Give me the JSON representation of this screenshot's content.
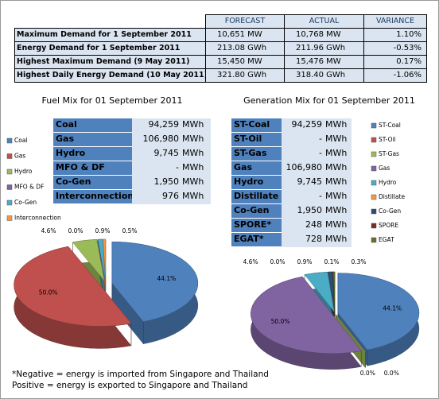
{
  "summary_table": {
    "headers": [
      "FORECAST",
      "ACTUAL",
      "VARIANCE"
    ],
    "rows": [
      [
        "Maximum Demand for 1 September 2011",
        "10,651 MW",
        "10,768 MW",
        "1.10%"
      ],
      [
        "Energy Demand for 1 September 2011",
        "213.08 GWh",
        "211.96 GWh",
        "-0.53%"
      ],
      [
        "Highest Maximum Demand (9 May 2011)",
        "15,450 MW",
        "15,476 MW",
        "0.17%"
      ],
      [
        "Highest Daily Energy Demand (10 May 2011)",
        "321.80 GWh",
        "318.40 GWh",
        "-1.06%"
      ]
    ]
  },
  "fuel_table": {
    "rows": [
      [
        "Coal",
        "94,259",
        "MWh"
      ],
      [
        "Gas",
        "106,980",
        "MWh"
      ],
      [
        "Hydro",
        "9,745",
        "MWh"
      ],
      [
        "MFO & DF",
        "-",
        "MWh"
      ],
      [
        "Co-Gen",
        "1,950",
        "MWh"
      ],
      [
        "Interconnection*",
        "976",
        "MWh"
      ]
    ]
  },
  "generation_table": {
    "rows": [
      [
        "ST-Coal",
        "94,259",
        "MWh"
      ],
      [
        "ST-Oil",
        "-",
        "MWh"
      ],
      [
        "ST-Gas",
        "-",
        "MWh"
      ],
      [
        "Gas",
        "106,980",
        "MWh"
      ],
      [
        "Hydro",
        "9,745",
        "MWh"
      ],
      [
        "Distillate",
        "-",
        "MWh"
      ],
      [
        "Co-Gen",
        "1,950",
        "MWh"
      ],
      [
        "SPORE*",
        "248",
        "MWh"
      ],
      [
        "EGAT*",
        "728",
        "MWh"
      ]
    ]
  },
  "notes": [
    "*Negative = energy is imported from Singapore and Thailand",
    "Positive = energy is exported to Singapore and Thailand"
  ],
  "chart_data": [
    {
      "type": "pie",
      "title": "Fuel Mix for 01 September 2011",
      "categories": [
        "Coal",
        "Gas",
        "Hydro",
        "MFO & DF",
        "Co-Gen",
        "Interconnection"
      ],
      "values": [
        44.1,
        50.0,
        4.6,
        0.0,
        0.9,
        0.5
      ],
      "value_labels": [
        "44.1%",
        "50.0%",
        "4.6%",
        "0.0%",
        "0.9%",
        "0.5%"
      ],
      "colors": [
        "#4f81bd",
        "#c0504d",
        "#9bbb59",
        "#8064a2",
        "#4bacc6",
        "#f79646"
      ]
    },
    {
      "type": "pie",
      "title": "Generation Mix for 01 September 2011",
      "categories": [
        "ST-Coal",
        "ST-Oil",
        "ST-Gas",
        "Gas",
        "Hydro",
        "Distillate",
        "Co-Gen",
        "SPORE",
        "EGAT"
      ],
      "values": [
        44.1,
        0.0,
        0.0,
        50.0,
        4.6,
        0.0,
        0.9,
        0.1,
        0.3
      ],
      "value_labels": [
        "44.1%",
        "0.0%",
        "0.0%",
        "50.0%",
        "4.6%",
        "0.0%",
        "0.9%",
        "0.1%",
        "0.3%"
      ],
      "colors": [
        "#4f81bd",
        "#c0504d",
        "#9bbb59",
        "#8064a2",
        "#4bacc6",
        "#f79646",
        "#2c4d75",
        "#772c2a",
        "#5f7530"
      ]
    }
  ]
}
